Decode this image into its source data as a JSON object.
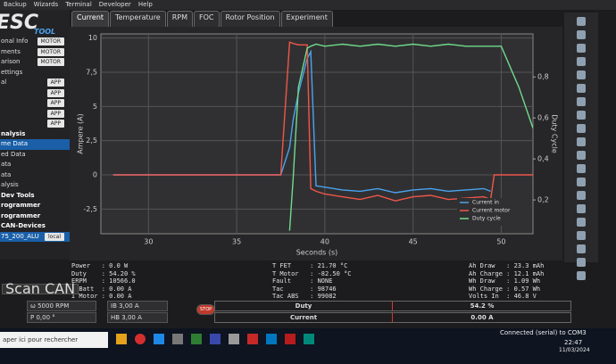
{
  "menu": [
    "Backup",
    "Wizards",
    "Terminal",
    "Developer",
    "Help"
  ],
  "logo": {
    "main": "ESC",
    "sub": "TOOL"
  },
  "sidebar": [
    {
      "label": "onal Info",
      "badge": "MOTOR"
    },
    {
      "label": "ments",
      "badge": "MOTOR"
    },
    {
      "label": "arison",
      "badge": "MOTOR"
    },
    {
      "label": "ettings"
    },
    {
      "label": "al",
      "badge": "APP"
    },
    {
      "badge": "APP"
    },
    {
      "badge": "APP"
    },
    {
      "badge": "APP"
    },
    {
      "badge": "APP"
    },
    {
      "label": "nalysis",
      "header": true
    },
    {
      "label": "me Data",
      "selected": true
    },
    {
      "label": "ed Data"
    },
    {
      "label": "ata"
    },
    {
      "label": "ata"
    },
    {
      "label": "alysis"
    },
    {
      "label": "Dev Tools",
      "header": true
    },
    {
      "label": "rogrammer",
      "header": true
    },
    {
      "label": "rogrammer",
      "header": true
    },
    {
      "label": "CAN-Devices",
      "header": true
    },
    {
      "label": "75_200_ALU",
      "badge": "local",
      "selected": true
    }
  ],
  "tabs": [
    "Current",
    "Temperature",
    "RPM",
    "FOC",
    "Rotor Position",
    "Experiment"
  ],
  "chart_data": {
    "type": "line",
    "xlabel": "Seconds (s)",
    "ylabel": "Ampere (A)",
    "y2label": "Duty Cycle",
    "x": [
      28,
      30,
      32,
      34,
      36,
      37.5,
      38,
      38.2,
      38.5,
      39,
      39.2,
      39.5,
      40,
      41,
      42,
      43,
      44,
      45,
      46,
      47,
      48,
      49,
      49.4,
      49.6,
      50,
      51,
      51.8
    ],
    "xlim": [
      27.3,
      51.8
    ],
    "xticks": [
      30,
      35,
      40,
      45,
      50
    ],
    "ylim": [
      -4.3,
      10.3
    ],
    "yticks": [
      {
        "value": -2.5,
        "label": "-2,5"
      },
      0,
      {
        "value": 2.5,
        "label": "2,5"
      },
      5,
      {
        "value": 7.5,
        "label": "7,5"
      },
      10
    ],
    "y2lim": [
      0.035,
      1.01
    ],
    "y2ticks": [
      {
        "value": 0.2,
        "label": "0,2"
      },
      {
        "value": 0.4,
        "label": "0,4"
      },
      {
        "value": 0.6,
        "label": "0,6"
      },
      {
        "value": 0.8,
        "label": "0,8"
      }
    ],
    "grid": true,
    "legend": "lower-right",
    "series": [
      {
        "name": "Current in",
        "color": "#4aa3ef",
        "values": [
          0,
          0,
          0,
          0,
          0,
          0,
          2,
          4,
          6,
          8.5,
          9,
          -0.8,
          -0.9,
          -1.1,
          -1.2,
          -1.0,
          -1.3,
          -1.1,
          -1.0,
          -1.2,
          -1.1,
          -1.0,
          -1.2,
          null,
          null,
          null,
          null
        ]
      },
      {
        "name": "Current motor",
        "color": "#f0564a",
        "values": [
          0,
          0,
          0,
          0,
          0,
          0,
          9.7,
          9.6,
          9.5,
          9.5,
          -1.0,
          -1.2,
          -1.4,
          -1.6,
          -1.8,
          -1.5,
          -1.9,
          -1.6,
          -1.5,
          -1.8,
          -1.7,
          -1.6,
          -1.8,
          0,
          0,
          0,
          0
        ]
      },
      {
        "name": "Duty cycle",
        "color": "#6fdc8c",
        "axis": "y2",
        "values": [
          null,
          null,
          null,
          null,
          null,
          null,
          0.05,
          0.3,
          0.75,
          0.94,
          0.95,
          0.96,
          0.95,
          0.96,
          0.95,
          0.96,
          0.95,
          0.96,
          0.95,
          0.96,
          0.95,
          0.95,
          0.95,
          0.95,
          0.95,
          0.75,
          0.55
        ]
      }
    ]
  },
  "status": {
    "left": [
      "Power   : 0.0 W",
      "Duty    : 54.20 %",
      "ERPM    : 10566.0",
      "I Batt  : 0.00 A",
      "I Motor : 0.00 A"
    ],
    "middle": [
      "T FET     : 21.70 °C",
      "T Motor   : -82.50 °C",
      "Fault     : NONE",
      "Tac       : 98746",
      "Tac ABS   : 99082"
    ],
    "right": [
      "Ah Draw   : 23.3 mAh",
      "Ah Charge : 12.1 mAh",
      "Wh Draw   : 1.09 Wh",
      "Wh Charge : 0.57 Wh",
      "Volts In  : 46.8 V"
    ]
  },
  "controls": {
    "scan": "Scan CAN",
    "rpm": "ω 5000 RPM",
    "ib": "IB 3,00 A",
    "pos": "P 0,00 °",
    "hb": "HB 3,00 A",
    "stop": "STOP",
    "duty_label": "Duty",
    "duty_value": "54.2 %",
    "current_label": "Current",
    "current_value": "0.00 A"
  },
  "taskbar": {
    "search": "aper ici pour rechercher",
    "connection": "Connected (serial) to COM3",
    "time": "22:47",
    "date": "11/03/2024"
  }
}
